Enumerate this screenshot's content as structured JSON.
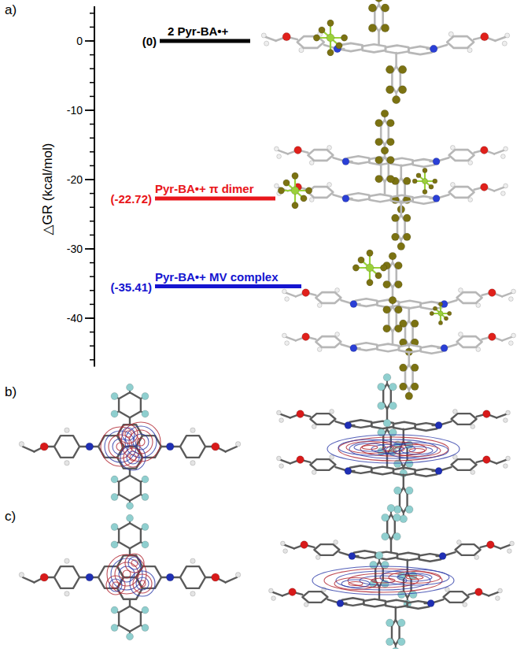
{
  "panels": [
    "a)",
    "b)",
    "c)"
  ],
  "chart_data": {
    "type": "energy_level",
    "y_label": "△GR (kcal/mol)",
    "categories": [
      "2 Pyr-BA•+",
      "Pyr-BA•+ π dimer",
      "Pyr-BA•+ MV complex"
    ],
    "values": [
      0,
      -22.72,
      -35.41
    ],
    "value_labels": [
      "(0)",
      "(-22.72)",
      "(-35.41)"
    ],
    "colors": [
      "#000000",
      "#e8161b",
      "#1515d0"
    ],
    "data_labels": true,
    "ylim": [
      -47,
      5
    ],
    "yticks": [
      0,
      -10,
      -20,
      -30,
      -40
    ]
  }
}
